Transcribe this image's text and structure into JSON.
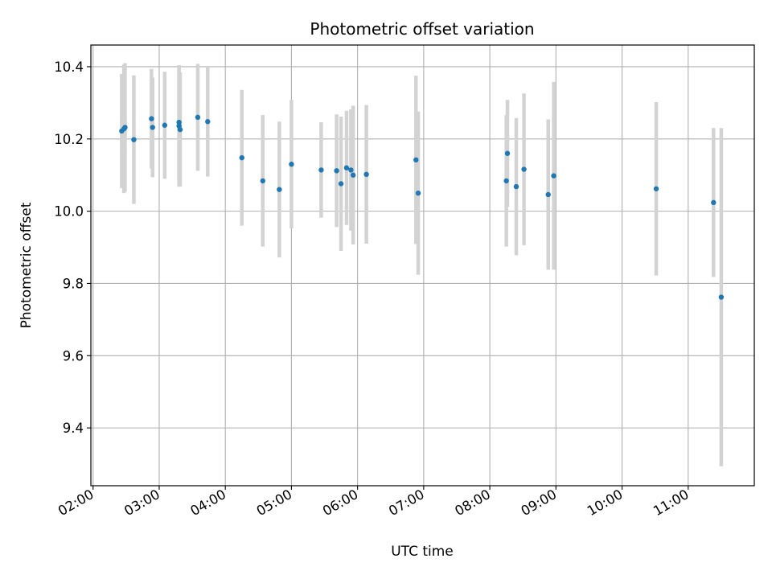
{
  "chart_data": {
    "type": "scatter",
    "title": "Photometric offset variation",
    "xlabel": "UTC time",
    "ylabel": "Photometric offset",
    "x_unit": "hours UTC",
    "xlim": [
      "01:58",
      "12:00"
    ],
    "ylim": [
      9.24,
      10.46
    ],
    "x_ticks": [
      {
        "value": "02:00",
        "label": "02:00"
      },
      {
        "value": "03:00",
        "label": "03:00"
      },
      {
        "value": "04:00",
        "label": "04:00"
      },
      {
        "value": "05:00",
        "label": "05:00"
      },
      {
        "value": "06:00",
        "label": "06:00"
      },
      {
        "value": "07:00",
        "label": "07:00"
      },
      {
        "value": "08:00",
        "label": "08:00"
      },
      {
        "value": "09:00",
        "label": "09:00"
      },
      {
        "value": "10:00",
        "label": "10:00"
      },
      {
        "value": "11:00",
        "label": "11:00"
      }
    ],
    "y_ticks": [
      {
        "value": 9.4,
        "label": "9.4"
      },
      {
        "value": 9.6,
        "label": "9.6"
      },
      {
        "value": 9.8,
        "label": "9.8"
      },
      {
        "value": 10.0,
        "label": "10.0"
      },
      {
        "value": 10.2,
        "label": "10.2"
      },
      {
        "value": 10.4,
        "label": "10.4"
      }
    ],
    "grid": true,
    "marker_color": "#1f77b4",
    "errorbar_color": "#d3d3d3",
    "points": [
      {
        "x": "02:26",
        "y": 10.222,
        "err": 0.158
      },
      {
        "x": "02:28",
        "y": 10.228,
        "err": 0.178
      },
      {
        "x": "02:29",
        "y": 10.232,
        "err": 0.178
      },
      {
        "x": "02:37",
        "y": 10.198,
        "err": 0.178
      },
      {
        "x": "02:53",
        "y": 10.256,
        "err": 0.138
      },
      {
        "x": "02:54",
        "y": 10.232,
        "err": 0.138
      },
      {
        "x": "03:05",
        "y": 10.238,
        "err": 0.148
      },
      {
        "x": "03:18",
        "y": 10.246,
        "err": 0.158
      },
      {
        "x": "03:18",
        "y": 10.236,
        "err": 0.168
      },
      {
        "x": "03:19",
        "y": 10.226,
        "err": 0.158
      },
      {
        "x": "03:35",
        "y": 10.26,
        "err": 0.148
      },
      {
        "x": "03:44",
        "y": 10.248,
        "err": 0.152
      },
      {
        "x": "04:15",
        "y": 10.148,
        "err": 0.188
      },
      {
        "x": "04:34",
        "y": 10.084,
        "err": 0.182
      },
      {
        "x": "04:49",
        "y": 10.06,
        "err": 0.188
      },
      {
        "x": "05:00",
        "y": 10.13,
        "err": 0.178
      },
      {
        "x": "05:27",
        "y": 10.114,
        "err": 0.132
      },
      {
        "x": "05:41",
        "y": 10.112,
        "err": 0.156
      },
      {
        "x": "05:45",
        "y": 10.076,
        "err": 0.186
      },
      {
        "x": "05:50",
        "y": 10.12,
        "err": 0.158
      },
      {
        "x": "05:54",
        "y": 10.114,
        "err": 0.168
      },
      {
        "x": "05:56",
        "y": 10.1,
        "err": 0.192
      },
      {
        "x": "06:08",
        "y": 10.102,
        "err": 0.192
      },
      {
        "x": "06:53",
        "y": 10.142,
        "err": 0.233
      },
      {
        "x": "06:55",
        "y": 10.05,
        "err": 0.226
      },
      {
        "x": "08:15",
        "y": 10.084,
        "err": 0.182
      },
      {
        "x": "08:16",
        "y": 10.16,
        "err": 0.148
      },
      {
        "x": "08:24",
        "y": 10.068,
        "err": 0.19
      },
      {
        "x": "08:31",
        "y": 10.116,
        "err": 0.21
      },
      {
        "x": "08:53",
        "y": 10.046,
        "err": 0.208
      },
      {
        "x": "08:58",
        "y": 10.098,
        "err": 0.26
      },
      {
        "x": "10:31",
        "y": 10.062,
        "err": 0.24
      },
      {
        "x": "11:23",
        "y": 10.024,
        "err": 0.206
      },
      {
        "x": "11:30",
        "y": 9.762,
        "err": 0.468
      }
    ]
  }
}
